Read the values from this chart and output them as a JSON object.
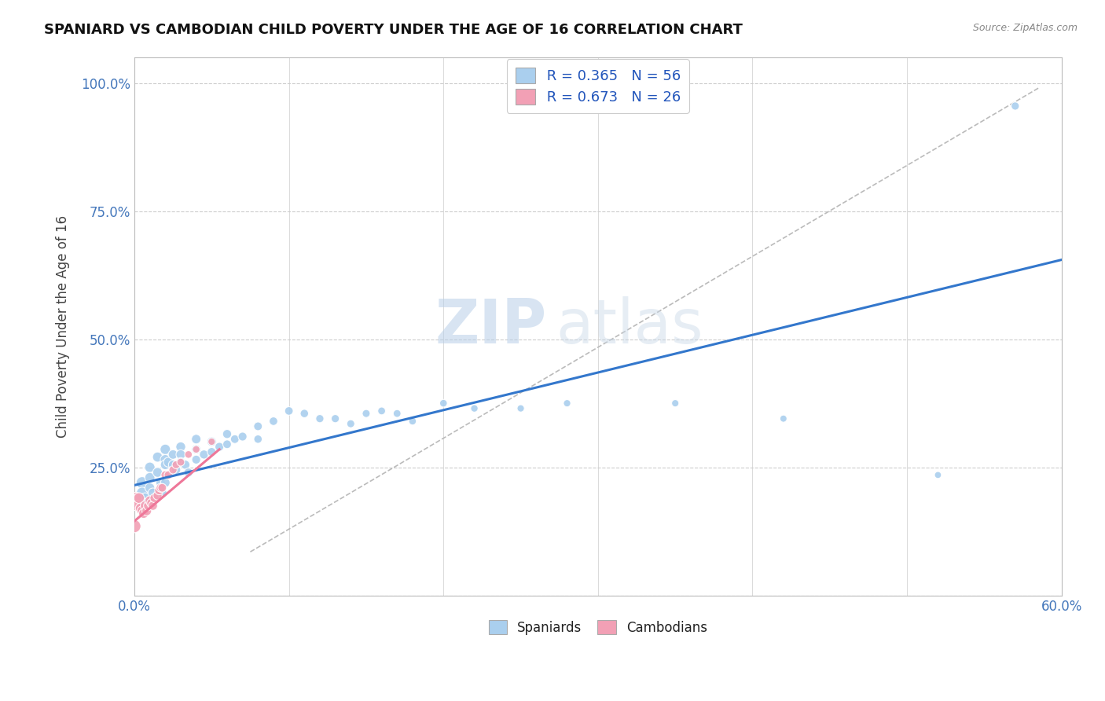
{
  "title": "SPANIARD VS CAMBODIAN CHILD POVERTY UNDER THE AGE OF 16 CORRELATION CHART",
  "source": "Source: ZipAtlas.com",
  "ylabel": "Child Poverty Under the Age of 16",
  "xlim": [
    0.0,
    0.6
  ],
  "ylim": [
    0.0,
    1.05
  ],
  "xtick_positions": [
    0.0,
    0.1,
    0.2,
    0.3,
    0.4,
    0.5,
    0.6
  ],
  "ytick_positions": [
    0.0,
    0.25,
    0.5,
    0.75,
    1.0
  ],
  "legend_r1": "R = 0.365",
  "legend_n1": "N = 56",
  "legend_r2": "R = 0.673",
  "legend_n2": "N = 26",
  "spaniard_color": "#aacfee",
  "cambodian_color": "#f2a0b5",
  "spaniard_line_color": "#3377cc",
  "cambodian_line_color": "#ee7799",
  "watermark_zip": "ZIP",
  "watermark_atlas": "atlas",
  "background_color": "#ffffff",
  "spaniard_x": [
    0.005,
    0.005,
    0.007,
    0.008,
    0.01,
    0.01,
    0.01,
    0.012,
    0.015,
    0.015,
    0.017,
    0.018,
    0.02,
    0.02,
    0.02,
    0.02,
    0.022,
    0.025,
    0.025,
    0.027,
    0.03,
    0.03,
    0.03,
    0.033,
    0.035,
    0.04,
    0.04,
    0.04,
    0.045,
    0.05,
    0.05,
    0.055,
    0.06,
    0.06,
    0.065,
    0.07,
    0.08,
    0.08,
    0.09,
    0.1,
    0.11,
    0.12,
    0.13,
    0.14,
    0.15,
    0.16,
    0.17,
    0.18,
    0.2,
    0.22,
    0.25,
    0.28,
    0.35,
    0.42,
    0.52,
    0.57
  ],
  "spaniard_y": [
    0.22,
    0.2,
    0.19,
    0.18,
    0.25,
    0.23,
    0.21,
    0.2,
    0.27,
    0.24,
    0.22,
    0.2,
    0.285,
    0.265,
    0.255,
    0.22,
    0.26,
    0.275,
    0.255,
    0.245,
    0.29,
    0.275,
    0.26,
    0.255,
    0.24,
    0.305,
    0.285,
    0.265,
    0.275,
    0.3,
    0.28,
    0.29,
    0.315,
    0.295,
    0.305,
    0.31,
    0.33,
    0.305,
    0.34,
    0.36,
    0.355,
    0.345,
    0.345,
    0.335,
    0.355,
    0.36,
    0.355,
    0.34,
    0.375,
    0.365,
    0.365,
    0.375,
    0.375,
    0.345,
    0.235,
    0.955
  ],
  "spaniard_sizes": [
    120,
    110,
    90,
    80,
    90,
    85,
    80,
    80,
    85,
    80,
    75,
    75,
    90,
    85,
    80,
    75,
    80,
    75,
    70,
    70,
    80,
    75,
    70,
    68,
    65,
    75,
    70,
    65,
    68,
    72,
    65,
    65,
    68,
    62,
    62,
    65,
    62,
    58,
    60,
    60,
    58,
    55,
    55,
    52,
    52,
    50,
    50,
    48,
    48,
    46,
    44,
    44,
    44,
    42,
    40,
    55
  ],
  "cambodian_x": [
    0.0,
    0.001,
    0.002,
    0.003,
    0.004,
    0.005,
    0.006,
    0.007,
    0.008,
    0.009,
    0.01,
    0.011,
    0.012,
    0.013,
    0.015,
    0.016,
    0.017,
    0.018,
    0.02,
    0.022,
    0.025,
    0.027,
    0.03,
    0.035,
    0.04,
    0.05
  ],
  "cambodian_y": [
    0.135,
    0.19,
    0.175,
    0.19,
    0.17,
    0.165,
    0.16,
    0.175,
    0.165,
    0.175,
    0.185,
    0.18,
    0.175,
    0.19,
    0.195,
    0.205,
    0.21,
    0.21,
    0.235,
    0.235,
    0.245,
    0.255,
    0.26,
    0.275,
    0.285,
    0.3
  ],
  "cambodian_sizes": [
    140,
    110,
    100,
    95,
    90,
    85,
    82,
    80,
    78,
    75,
    75,
    72,
    70,
    68,
    68,
    65,
    65,
    62,
    60,
    58,
    55,
    52,
    50,
    48,
    46,
    44
  ],
  "blue_line_x": [
    0.0,
    0.6
  ],
  "blue_line_y": [
    0.215,
    0.655
  ],
  "pink_line_x": [
    0.0,
    0.055
  ],
  "pink_line_y": [
    0.145,
    0.285
  ],
  "dash_line_x": [
    0.075,
    0.585
  ],
  "dash_line_y": [
    0.085,
    0.99
  ]
}
